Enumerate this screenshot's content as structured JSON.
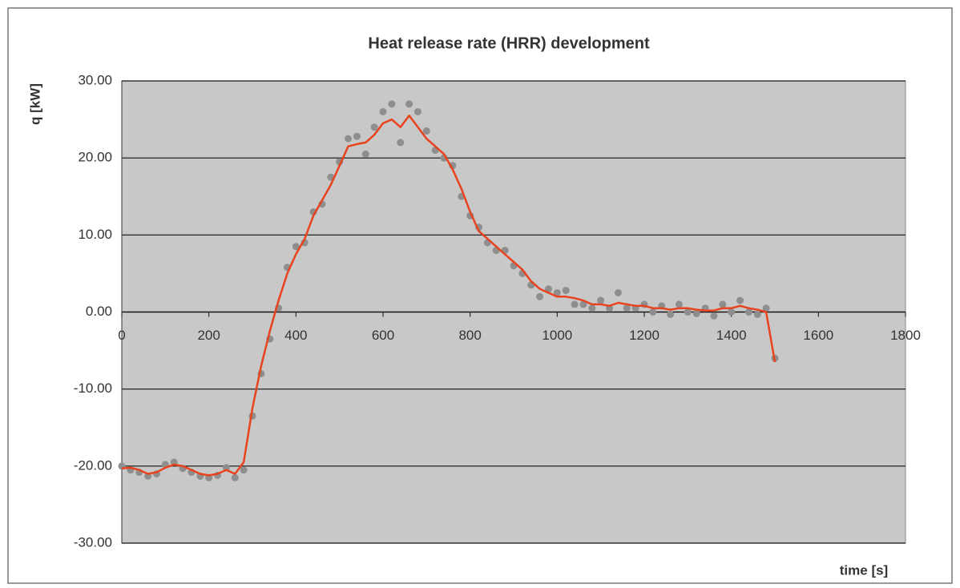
{
  "chart_data": {
    "type": "line",
    "title": "Heat release rate (HRR) development",
    "ylabel": "q [kW]",
    "xlabel": "time [s]",
    "x": [
      0,
      20,
      40,
      60,
      80,
      100,
      120,
      140,
      160,
      180,
      200,
      220,
      240,
      260,
      280,
      300,
      320,
      340,
      360,
      380,
      400,
      420,
      440,
      460,
      480,
      500,
      520,
      540,
      560,
      580,
      600,
      620,
      640,
      660,
      680,
      700,
      720,
      740,
      760,
      780,
      800,
      820,
      840,
      860,
      880,
      900,
      920,
      940,
      960,
      980,
      1000,
      1020,
      1040,
      1060,
      1080,
      1100,
      1120,
      1140,
      1160,
      1180,
      1200,
      1220,
      1240,
      1260,
      1280,
      1300,
      1320,
      1340,
      1360,
      1380,
      1400,
      1420,
      1440,
      1460,
      1480,
      1500
    ],
    "series": [
      {
        "color": "#8e8e8e",
        "mode": "markers",
        "values": [
          -20.0,
          -20.5,
          -20.8,
          -21.3,
          -21.0,
          -19.8,
          -19.5,
          -20.3,
          -20.8,
          -21.3,
          -21.5,
          -21.2,
          -20.2,
          -21.5,
          -20.5,
          -13.5,
          -8.0,
          -3.5,
          0.5,
          5.8,
          8.5,
          9.0,
          13.0,
          14.0,
          17.5,
          19.5,
          22.5,
          22.8,
          20.5,
          24.0,
          26.0,
          27.0,
          22.0,
          27.0,
          26.0,
          23.5,
          21.0,
          20.0,
          19.0,
          15.0,
          12.5,
          11.0,
          9.0,
          8.0,
          8.0,
          6.0,
          5.0,
          3.5,
          2.0,
          3.0,
          2.5,
          2.8,
          1.0,
          1.0,
          0.5,
          1.5,
          0.5,
          2.5,
          0.5,
          0.5,
          1.0,
          0.0,
          0.8,
          -0.3,
          1.0,
          0.0,
          -0.2,
          0.5,
          -0.5,
          1.0,
          0.0,
          1.5,
          0.0,
          -0.3,
          0.5,
          -6.0
        ]
      },
      {
        "color": "#e8431e",
        "mode": "line",
        "values": [
          -20.3,
          -20.2,
          -20.5,
          -21.0,
          -20.8,
          -20.2,
          -19.8,
          -20.0,
          -20.5,
          -21.0,
          -21.2,
          -21.0,
          -20.5,
          -21.0,
          -19.5,
          -12.5,
          -7.0,
          -2.5,
          1.5,
          5.0,
          7.5,
          9.5,
          12.5,
          14.5,
          16.5,
          19.0,
          21.5,
          21.8,
          22.0,
          23.0,
          24.5,
          25.0,
          24.0,
          25.5,
          24.0,
          22.5,
          21.5,
          20.5,
          18.5,
          16.0,
          13.0,
          10.5,
          9.5,
          8.5,
          7.5,
          6.5,
          5.5,
          4.0,
          3.0,
          2.5,
          2.0,
          2.0,
          1.8,
          1.5,
          1.0,
          1.0,
          0.8,
          1.2,
          1.0,
          0.8,
          0.8,
          0.5,
          0.5,
          0.3,
          0.5,
          0.5,
          0.3,
          0.2,
          0.2,
          0.5,
          0.5,
          0.8,
          0.5,
          0.3,
          0.0,
          -6.5
        ]
      }
    ],
    "xlim": [
      0,
      1800
    ],
    "xticks": [
      0,
      200,
      400,
      600,
      800,
      1000,
      1200,
      1400,
      1600,
      1800
    ],
    "ylim": [
      -30,
      30
    ],
    "yticks": [
      {
        "value": -30,
        "label": "-30.00"
      },
      {
        "value": -20,
        "label": "-20.00"
      },
      {
        "value": -10,
        "label": "-10.00"
      },
      {
        "value": 0,
        "label": "0.00"
      },
      {
        "value": 10,
        "label": "10.00"
      },
      {
        "value": 20,
        "label": "20.00"
      },
      {
        "value": 30,
        "label": "30.00"
      }
    ],
    "grid": true
  }
}
